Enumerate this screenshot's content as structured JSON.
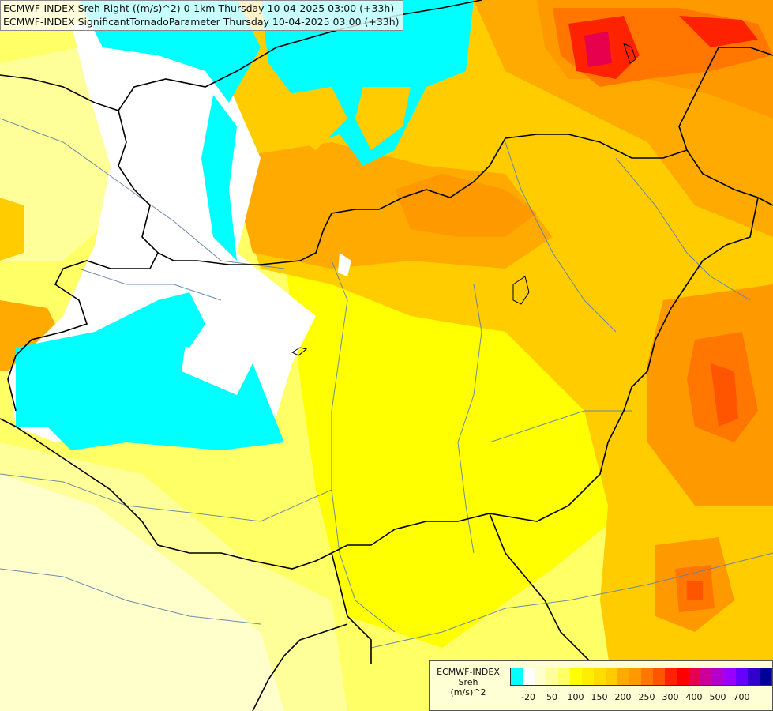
{
  "header": {
    "line1": "ECMWF-INDEX Sreh Right ((m/s)^2) 0-1km Thursday 10-04-2025 03:00 (+33h)",
    "line2": "ECMWF-INDEX SignificantTornadoParameter Thursday 10-04-2025 03:00 (+33h)"
  },
  "legend": {
    "title_line1": "ECMWF-INDEX",
    "title_line2": "Sreh",
    "title_line3": "(m/s)^2",
    "colors": [
      "#00ffff",
      "#ffffff",
      "#ffffcc",
      "#ffff99",
      "#ffff66",
      "#ffff00",
      "#ffee00",
      "#ffdd00",
      "#ffcc00",
      "#ffaa00",
      "#ff9900",
      "#ff7700",
      "#ff5500",
      "#ff2200",
      "#ff0000",
      "#e6004d",
      "#cc0099",
      "#b300cc",
      "#9900ff",
      "#6600ff",
      "#3300cc",
      "#000099"
    ],
    "ticks": [
      {
        "label": "-20",
        "pos": 1
      },
      {
        "label": "50",
        "pos": 3
      },
      {
        "label": "100",
        "pos": 5
      },
      {
        "label": "150",
        "pos": 7
      },
      {
        "label": "200",
        "pos": 9
      },
      {
        "label": "250",
        "pos": 11
      },
      {
        "label": "300",
        "pos": 13
      },
      {
        "label": "400",
        "pos": 15
      },
      {
        "label": "500",
        "pos": 17
      },
      {
        "label": "700",
        "pos": 19
      }
    ]
  }
}
